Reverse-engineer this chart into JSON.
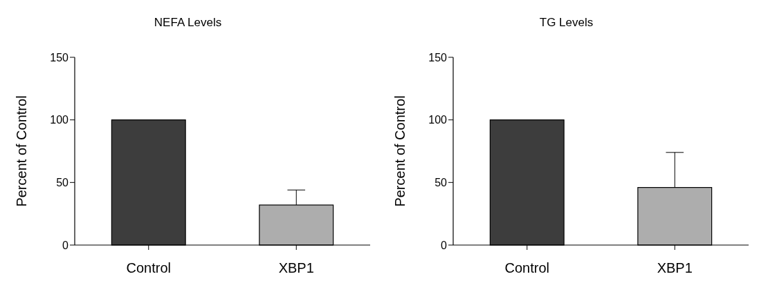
{
  "chart_data": [
    {
      "type": "bar",
      "title": "NEFA Levels",
      "ylabel": "Percent of Control",
      "categories": [
        "Control",
        "XBP1"
      ],
      "values": [
        100,
        32
      ],
      "colors": [
        "#3d3d3d",
        "#adadad"
      ],
      "errors": [
        null,
        [
          32,
          44
        ]
      ],
      "ylim": [
        0,
        150
      ],
      "yticks": [
        0,
        50,
        100,
        150
      ],
      "grid": false,
      "legend": false
    },
    {
      "type": "bar",
      "title": "TG Levels",
      "ylabel": "Percent of Control",
      "categories": [
        "Control",
        "XBP1"
      ],
      "values": [
        100,
        46
      ],
      "colors": [
        "#3d3d3d",
        "#adadad"
      ],
      "errors": [
        null,
        [
          46,
          74
        ]
      ],
      "ylim": [
        0,
        150
      ],
      "yticks": [
        0,
        50,
        100,
        150
      ],
      "grid": false,
      "legend": false
    }
  ]
}
